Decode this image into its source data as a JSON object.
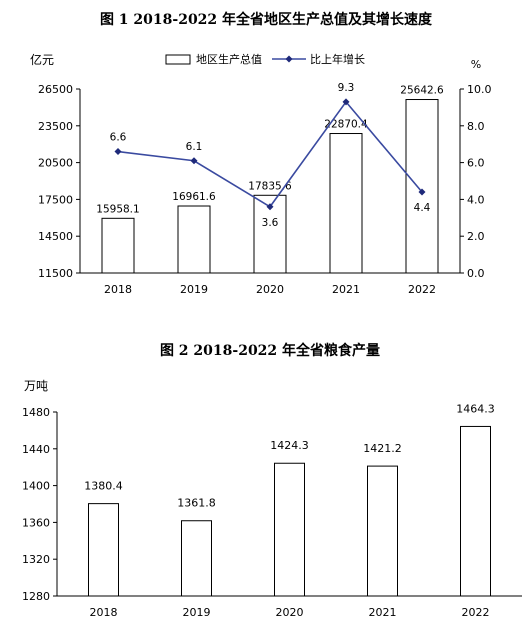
{
  "chart_data": [
    {
      "type": "bar+line",
      "title": "图 1  2018-2022 年全省地区生产总值及其增长速度",
      "y_left_unit": "亿元",
      "y_right_unit": "%",
      "categories": [
        "2018",
        "2019",
        "2020",
        "2021",
        "2022"
      ],
      "ylim_left": [
        11500,
        26500
      ],
      "yticks_left": [
        "11500",
        "14500",
        "17500",
        "20500",
        "23500",
        "26500"
      ],
      "ylim_right": [
        0,
        10
      ],
      "yticks_right": [
        "0.0",
        "2.0",
        "4.0",
        "6.0",
        "8.0",
        "10.0"
      ],
      "series": [
        {
          "name": "地区生产总值",
          "kind": "bar",
          "axis": "left",
          "values": [
            15958.1,
            16961.6,
            17835.6,
            22870.4,
            25642.6
          ],
          "labels": [
            "15958.1",
            "16961.6",
            "17835.6",
            "22870.4",
            "25642.6"
          ]
        },
        {
          "name": "比上年增长",
          "kind": "line",
          "axis": "right",
          "values": [
            6.6,
            6.1,
            3.6,
            9.3,
            4.4
          ],
          "labels": [
            "6.6",
            "6.1",
            "3.6",
            "9.3",
            "4.4"
          ]
        }
      ],
      "legend": "top-center",
      "colors": {
        "bar_fill": "#ffffff",
        "bar_stroke": "#000000",
        "line": "#3a4aa0"
      }
    },
    {
      "type": "bar",
      "title": "图 2    2018-2022 年全省粮食产量",
      "y_unit": "万吨",
      "categories": [
        "2018",
        "2019",
        "2020",
        "2021",
        "2022"
      ],
      "ylim": [
        1280,
        1480
      ],
      "yticks": [
        "1280",
        "1320",
        "1360",
        "1400",
        "1440",
        "1480"
      ],
      "values": [
        1380.4,
        1361.8,
        1424.3,
        1421.2,
        1464.3
      ],
      "labels": [
        "1380.4",
        "1361.8",
        "1424.3",
        "1421.2",
        "1464.3"
      ],
      "colors": {
        "bar_fill": "#ffffff",
        "bar_stroke": "#000000"
      }
    }
  ]
}
